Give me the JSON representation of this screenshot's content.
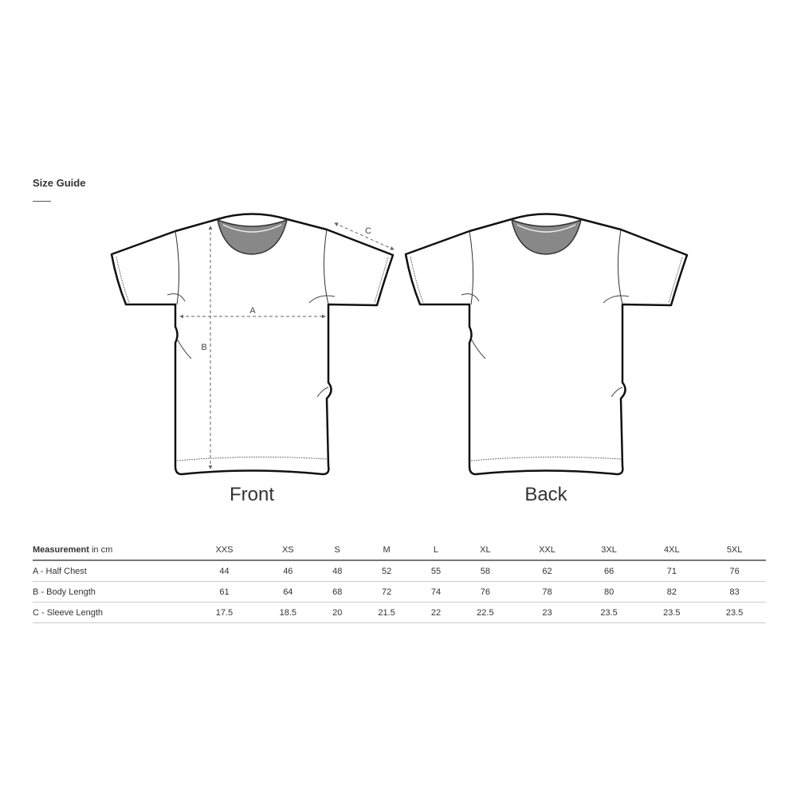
{
  "title": "Size Guide",
  "views": {
    "front": "Front",
    "back": "Back"
  },
  "measure_labels": {
    "a": "A",
    "b": "B",
    "c": "C"
  },
  "table": {
    "header_bold": "Measurement",
    "header_unit": " in cm",
    "sizes": [
      "XXS",
      "XS",
      "S",
      "M",
      "L",
      "XL",
      "XXL",
      "3XL",
      "4XL",
      "5XL"
    ],
    "rows": [
      {
        "label": "A - Half Chest",
        "values": [
          "44",
          "46",
          "48",
          "52",
          "55",
          "58",
          "62",
          "66",
          "71",
          "76"
        ]
      },
      {
        "label": "B - Body Length",
        "values": [
          "61",
          "64",
          "68",
          "72",
          "74",
          "76",
          "78",
          "80",
          "82",
          "83"
        ]
      },
      {
        "label": "C - Sleeve Length",
        "values": [
          "17.5",
          "18.5",
          "20",
          "21.5",
          "22",
          "22.5",
          "23",
          "23.5",
          "23.5",
          "23.5"
        ]
      }
    ]
  }
}
